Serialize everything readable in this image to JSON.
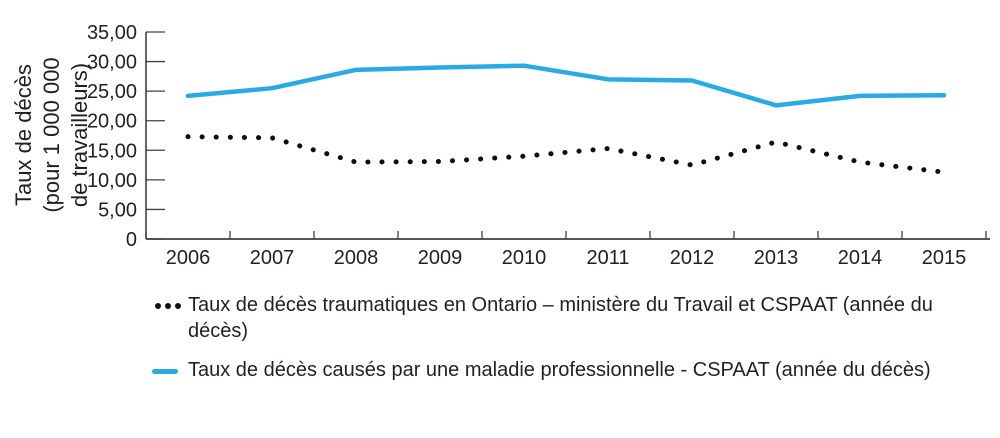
{
  "figure": {
    "background": "#ffffff",
    "y_axis_title_lines": [
      "Taux de décès",
      "(pour 1 000 000",
      "de travailleurs)"
    ]
  },
  "chart_data": {
    "type": "line",
    "title": "",
    "xlabel": "",
    "ylabel": "Taux de décès (pour 1 000 000 de travailleurs)",
    "ylim": [
      0,
      35
    ],
    "grid": false,
    "legend_position": "bottom",
    "categories": [
      "2006",
      "2007",
      "2008",
      "2009",
      "2010",
      "2011",
      "2012",
      "2013",
      "2014",
      "2015"
    ],
    "ytick_labels": [
      "0",
      "5,00",
      "10,00",
      "15,00",
      "20,00",
      "25,00",
      "30,00",
      "35,00"
    ],
    "axis_color": "#414042",
    "text_color": "#231f20",
    "series": [
      {
        "name": "Taux de décès traumatiques en Ontario – ministère du Travail et CSPAAT (année du décès)",
        "style": "dotted",
        "color": "#0d0d0d",
        "values": [
          17.3,
          17.1,
          13.0,
          13.1,
          14.0,
          15.3,
          12.5,
          16.4,
          13.0,
          11.3
        ]
      },
      {
        "name": "Taux de décès causés par une maladie professionnelle - CSPAAT (année du décès)",
        "style": "solid",
        "color": "#29abe2",
        "values": [
          24.2,
          25.5,
          28.6,
          29.0,
          29.3,
          27.0,
          26.8,
          22.6,
          24.2,
          24.3
        ]
      }
    ]
  }
}
